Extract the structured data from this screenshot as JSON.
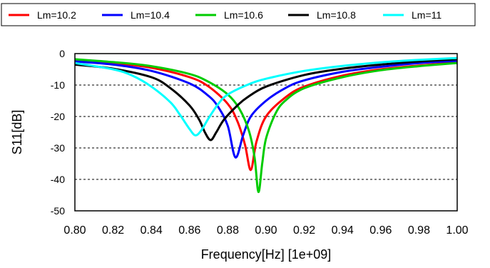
{
  "chart_data": {
    "type": "line",
    "title": "",
    "xlabel": "Frequency[Hz] [1e+09]",
    "ylabel": "S11[dB]",
    "xlim": [
      0.8,
      1.0
    ],
    "ylim": [
      -50,
      0
    ],
    "xticks": [
      "0.80",
      "0.82",
      "0.84",
      "0.86",
      "0.88",
      "0.90",
      "0.92",
      "0.94",
      "0.96",
      "0.98",
      "1.00"
    ],
    "yticks": [
      "0",
      "-10",
      "-20",
      "-30",
      "-40",
      "-50"
    ],
    "grid": true,
    "legend": "top",
    "series": [
      {
        "name": "Lm=10.2",
        "color": "#ff0000",
        "x": [
          0.8,
          0.82,
          0.84,
          0.86,
          0.87,
          0.88,
          0.885,
          0.889,
          0.892,
          0.895,
          0.9,
          0.91,
          0.92,
          0.94,
          0.96,
          0.98,
          1.0
        ],
        "y": [
          -2.0,
          -3.0,
          -4.5,
          -7.5,
          -10.5,
          -16.0,
          -21.5,
          -29.0,
          -37.0,
          -28.0,
          -20.0,
          -14.0,
          -10.5,
          -7.0,
          -5.0,
          -3.8,
          -2.8
        ]
      },
      {
        "name": "Lm=10.4",
        "color": "#0000ff",
        "x": [
          0.8,
          0.82,
          0.84,
          0.86,
          0.87,
          0.875,
          0.88,
          0.884,
          0.888,
          0.892,
          0.9,
          0.91,
          0.92,
          0.94,
          0.96,
          0.98,
          1.0
        ],
        "y": [
          -2.5,
          -3.5,
          -5.5,
          -9.5,
          -13.5,
          -17.0,
          -23.0,
          -33.0,
          -26.0,
          -20.0,
          -15.0,
          -11.0,
          -8.5,
          -5.8,
          -4.2,
          -3.0,
          -2.3
        ]
      },
      {
        "name": "Lm=10.6",
        "color": "#00cc00",
        "x": [
          0.8,
          0.82,
          0.84,
          0.86,
          0.87,
          0.88,
          0.886,
          0.891,
          0.894,
          0.896,
          0.898,
          0.9,
          0.905,
          0.91,
          0.92,
          0.94,
          0.96,
          0.98,
          1.0
        ],
        "y": [
          -1.8,
          -2.7,
          -4.0,
          -6.5,
          -9.0,
          -13.0,
          -17.5,
          -24.5,
          -33.0,
          -44.0,
          -35.0,
          -27.0,
          -19.0,
          -15.0,
          -11.0,
          -7.5,
          -5.3,
          -4.0,
          -3.0
        ]
      },
      {
        "name": "Lm=10.8",
        "color": "#000000",
        "x": [
          0.8,
          0.82,
          0.84,
          0.85,
          0.86,
          0.865,
          0.868,
          0.871,
          0.874,
          0.878,
          0.885,
          0.89,
          0.9,
          0.92,
          0.94,
          0.96,
          0.98,
          1.0
        ],
        "y": [
          -3.5,
          -4.8,
          -7.5,
          -11.0,
          -16.5,
          -21.0,
          -25.0,
          -27.5,
          -25.0,
          -21.0,
          -16.5,
          -14.0,
          -10.5,
          -6.8,
          -4.8,
          -3.5,
          -2.5,
          -1.8
        ]
      },
      {
        "name": "Lm=11",
        "color": "#00ffff",
        "x": [
          0.8,
          0.82,
          0.83,
          0.84,
          0.85,
          0.855,
          0.86,
          0.863,
          0.866,
          0.87,
          0.875,
          0.88,
          0.89,
          0.9,
          0.92,
          0.94,
          0.96,
          0.98,
          1.0
        ],
        "y": [
          -3.0,
          -5.0,
          -7.0,
          -10.5,
          -15.5,
          -19.5,
          -24.0,
          -26.0,
          -24.5,
          -20.5,
          -16.0,
          -13.0,
          -10.0,
          -8.0,
          -5.5,
          -3.9,
          -2.8,
          -2.0,
          -1.4
        ]
      }
    ]
  }
}
